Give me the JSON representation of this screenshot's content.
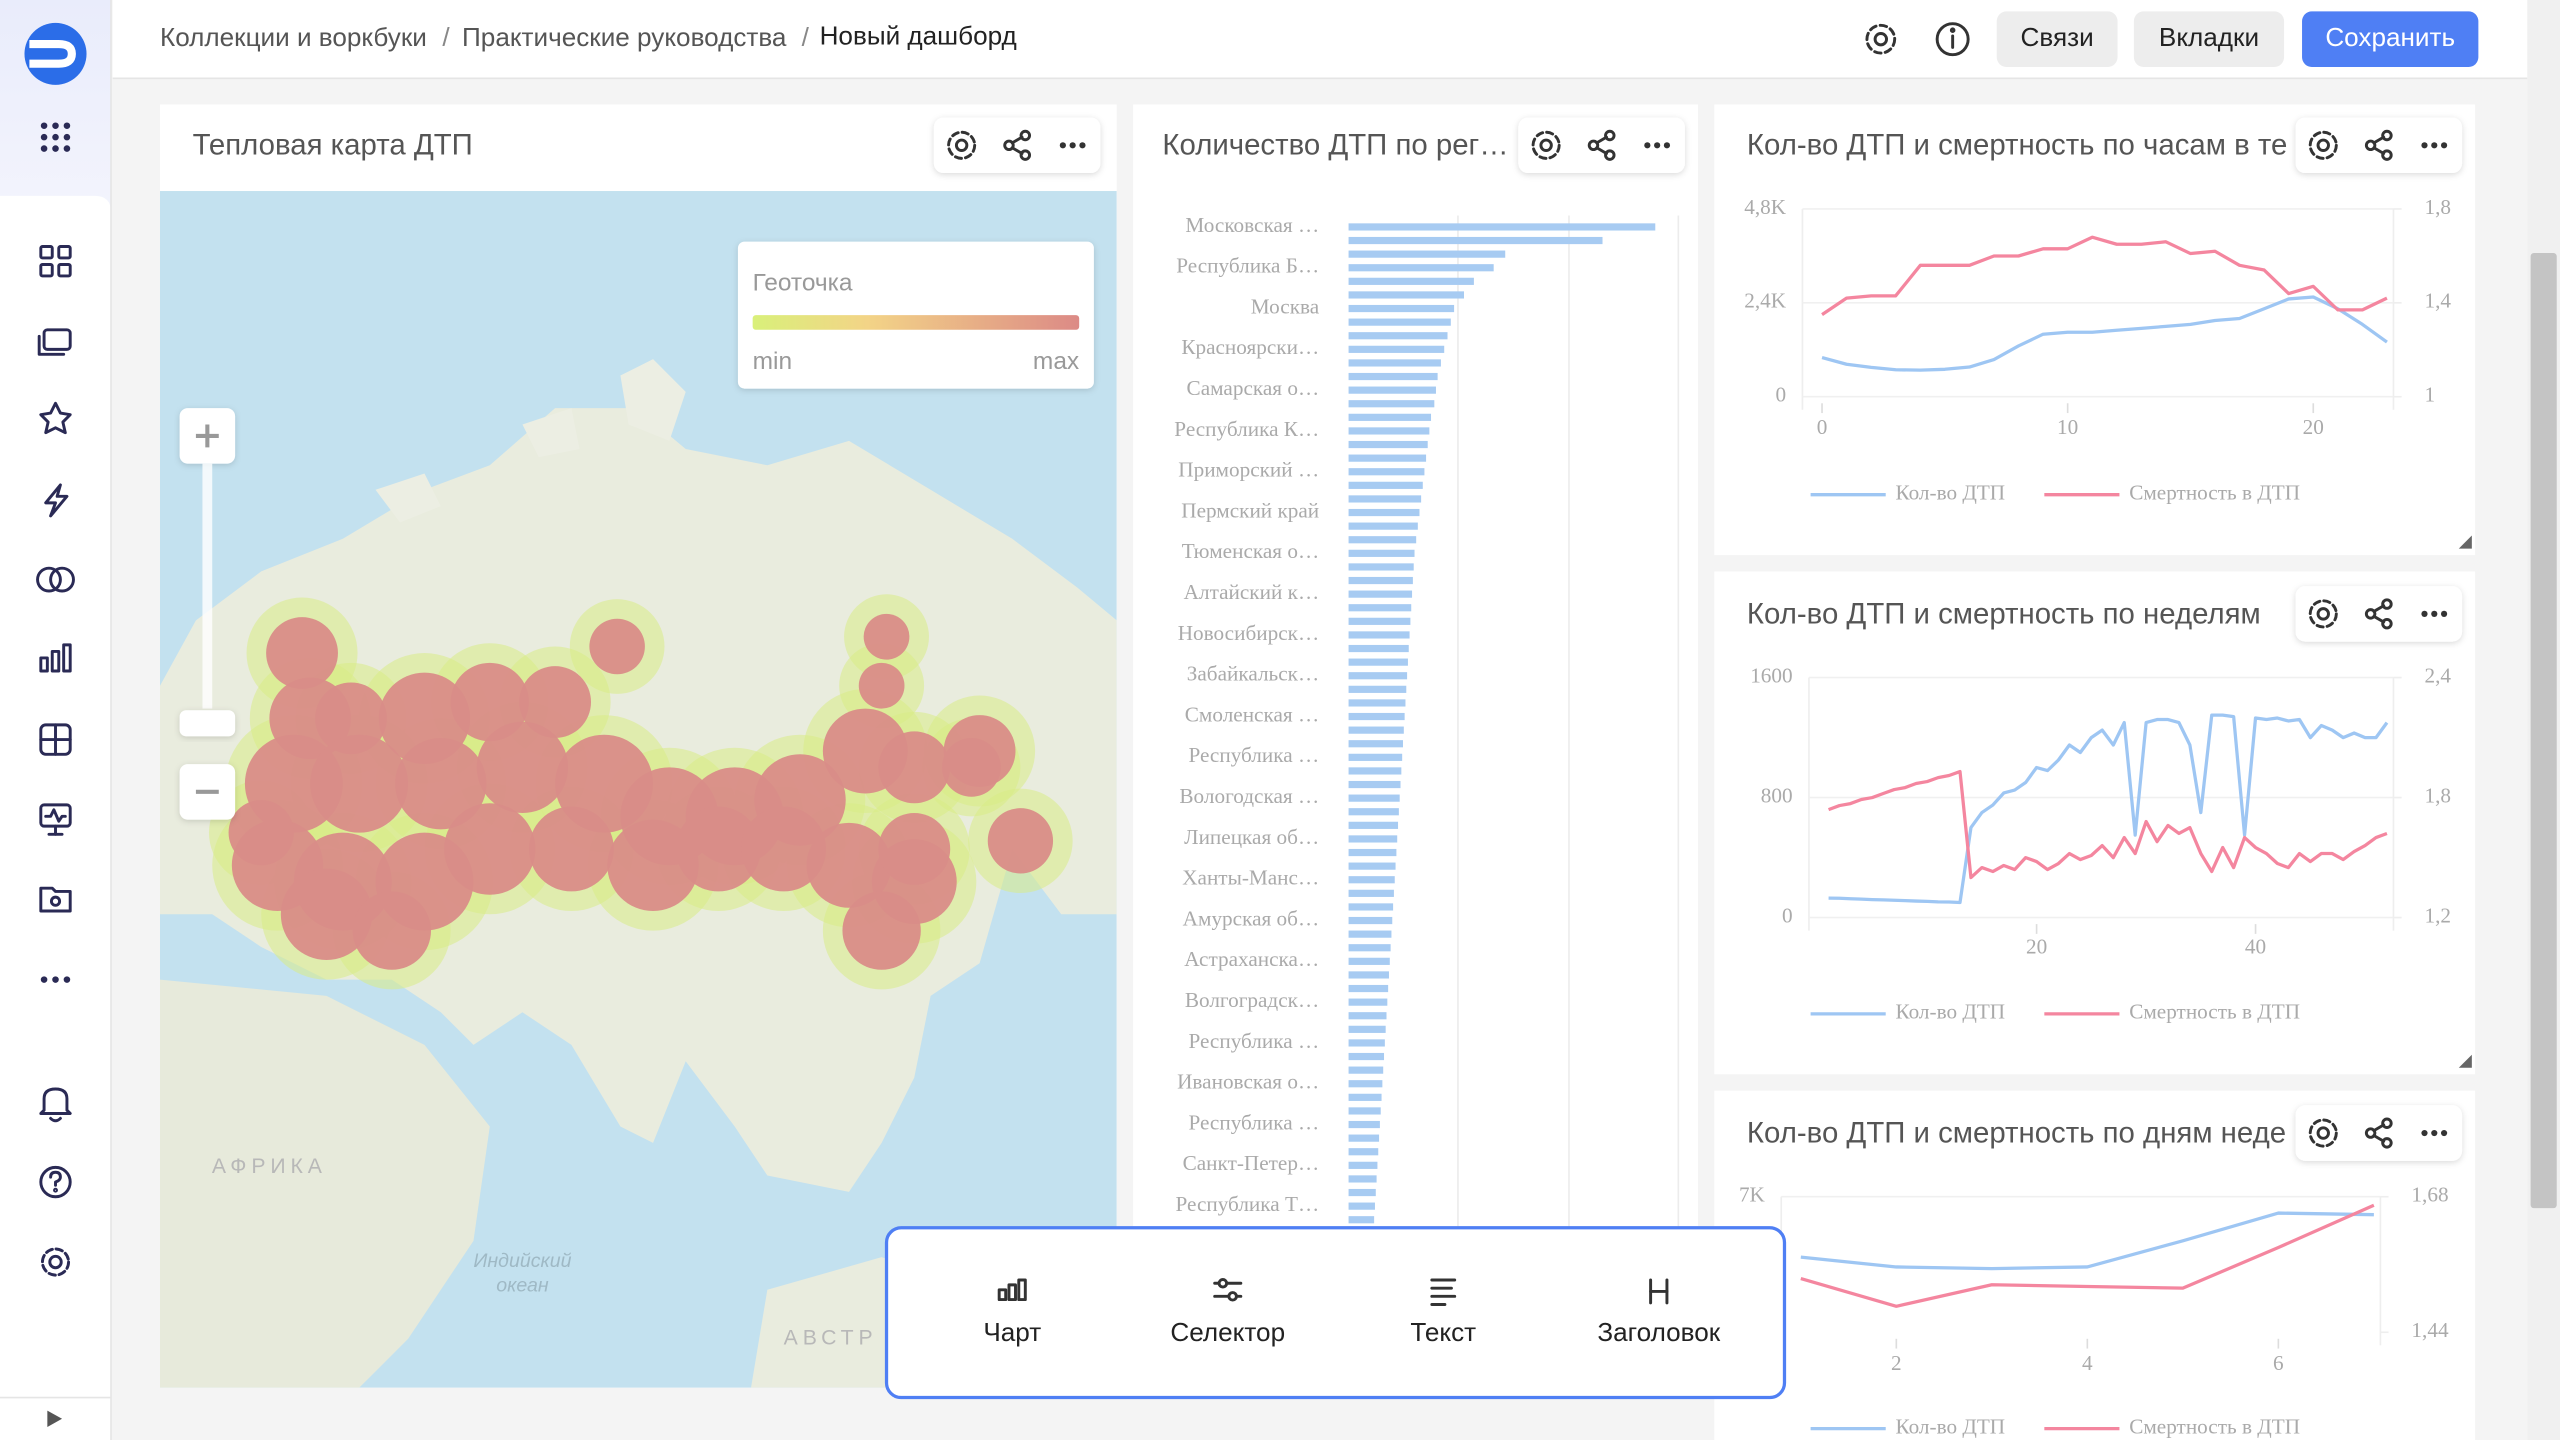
{
  "breadcrumbs": [
    "Коллекции и воркбуки",
    "Практические руководства",
    "Новый дашборд"
  ],
  "header_buttons": [
    "Связи",
    "Вкладки",
    "Сохранить"
  ],
  "widgets": [
    {
      "title": "Тепловая карта ДТП",
      "legend": {
        "title": "Геоточка",
        "min": "min",
        "max": "max"
      },
      "map_labels": [
        "АФРИКА",
        "Индийский",
        "океан",
        "АВСТР"
      ]
    },
    {
      "title": "Количество ДТП по рег…",
      "chart": {
        "type": "bar",
        "orientation": "horizontal",
        "color": "#a7cbf2",
        "xlim": [
          0,
          200
        ],
        "categories": [
          "Московская …",
          null,
          null,
          "Республика Б…",
          null,
          null,
          "Москва",
          null,
          null,
          "Красноярски…",
          null,
          null,
          "Самарская о…",
          null,
          null,
          "Республика К…",
          null,
          null,
          "Приморский …",
          null,
          null,
          "Пермский край",
          null,
          null,
          "Тюменская о…",
          null,
          null,
          "Алтайский к…",
          null,
          null,
          "Новосибирск…",
          null,
          null,
          "Забайкальск…",
          null,
          null,
          "Смоленская …",
          null,
          null,
          "Республика …",
          null,
          null,
          "Вологодская …",
          null,
          null,
          "Липецкая об…",
          null,
          null,
          "Ханты-Манс…",
          null,
          null,
          "Амурская об…",
          null,
          null,
          "Астраханска…",
          null,
          null,
          "Волгоградск…",
          null,
          null,
          "Республика …",
          null,
          null,
          "Ивановская о…",
          null,
          null,
          "Республика …",
          null,
          null,
          "Санкт-Петер…",
          null,
          null,
          "Республика Т…",
          null,
          null
        ],
        "values": [
          186,
          154,
          95,
          88,
          76,
          70,
          64,
          62,
          60,
          58,
          56,
          54,
          53,
          52,
          50,
          49,
          48,
          47,
          46,
          45,
          44,
          43,
          42,
          41,
          40,
          39.5,
          39,
          38.5,
          38,
          37.5,
          37,
          36.5,
          36,
          35.5,
          35,
          34.5,
          34,
          33.5,
          33,
          32.5,
          32,
          31.5,
          31,
          30.5,
          30,
          29.5,
          29,
          28.5,
          28,
          27.5,
          27,
          26.5,
          26,
          25.5,
          25,
          24.5,
          24,
          23.5,
          23,
          22.5,
          22,
          21.5,
          21,
          20.5,
          20,
          19.5,
          19,
          18.5,
          18,
          17.5,
          17,
          16.5,
          16,
          15.5,
          15
        ]
      }
    },
    {
      "title": "Кол-во ДТП и смертность по часам в те",
      "chart": {
        "type": "line",
        "x": [
          0,
          1,
          2,
          3,
          4,
          5,
          6,
          7,
          8,
          9,
          10,
          11,
          12,
          13,
          14,
          15,
          16,
          17,
          18,
          19,
          20,
          21,
          22,
          23
        ],
        "xlim": [
          0,
          23
        ],
        "xticks": [
          0,
          10,
          20
        ],
        "ylim": [
          0,
          4800
        ],
        "yticks": [
          0,
          {
            "value": 2400,
            "label": "2,4K"
          },
          {
            "value": 4800,
            "label": "4,8K"
          }
        ],
        "y2lim": [
          1,
          1.8
        ],
        "y2ticks": [
          1,
          {
            "value": 1.4,
            "label": "1,4"
          },
          {
            "value": 1.8,
            "label": "1,8"
          }
        ],
        "series": [
          {
            "name": "Кол-во ДТП",
            "color": "#9ec6f3",
            "values": [
              1000,
              830,
              750,
              690,
              680,
              700,
              760,
              950,
              1300,
              1600,
              1650,
              1650,
              1700,
              1750,
              1800,
              1850,
              1950,
              2000,
              2250,
              2500,
              2550,
              2250,
              1850,
              1400
            ]
          },
          {
            "name": "Смертность в ДТП",
            "color": "#f4869f",
            "axis": "y2",
            "values": [
              1.35,
              1.42,
              1.43,
              1.43,
              1.56,
              1.56,
              1.56,
              1.6,
              1.6,
              1.63,
              1.63,
              1.68,
              1.65,
              1.65,
              1.66,
              1.61,
              1.62,
              1.56,
              1.54,
              1.44,
              1.47,
              1.37,
              1.37,
              1.42
            ]
          }
        ]
      }
    },
    {
      "title": "Кол-во ДТП и смертность по неделям",
      "chart": {
        "type": "line",
        "x": [
          1,
          2,
          3,
          4,
          5,
          6,
          7,
          8,
          9,
          10,
          11,
          12,
          13,
          14,
          15,
          16,
          17,
          18,
          19,
          20,
          21,
          22,
          23,
          24,
          25,
          26,
          27,
          28,
          29,
          30,
          31,
          32,
          33,
          34,
          35,
          36,
          37,
          38,
          39,
          40,
          41,
          42,
          43,
          44,
          45,
          46,
          47,
          48,
          49,
          50,
          51,
          52
        ],
        "xlim": [
          1,
          52
        ],
        "xticks": [
          20,
          40
        ],
        "ylim": [
          0,
          1600
        ],
        "yticks": [
          0,
          800,
          1600
        ],
        "y2lim": [
          1.2,
          2.4
        ],
        "y2ticks": [
          {
            "value": 1.2,
            "label": "1,2"
          },
          {
            "value": 1.8,
            "label": "1,8"
          },
          {
            "value": 2.4,
            "label": "2,4"
          }
        ],
        "series": [
          {
            "name": "Кол-во ДТП",
            "color": "#9ec6f3",
            "values": [
              130,
              128,
              125,
              123,
              120,
              118,
              115,
              113,
              110,
              108,
              105,
              103,
              100,
              600,
              700,
              750,
              830,
              850,
              900,
              1000,
              980,
              1050,
              1150,
              1100,
              1200,
              1250,
              1150,
              1300,
              550,
              1300,
              1320,
              1320,
              1300,
              1150,
              700,
              1350,
              1350,
              1340,
              550,
              1330,
              1320,
              1330,
              1310,
              1320,
              1200,
              1280,
              1250,
              1200,
              1230,
              1200,
              1200,
              1300
            ]
          },
          {
            "name": "Смертность в ДТП",
            "color": "#f4869f",
            "axis": "y2",
            "values": [
              1.74,
              1.76,
              1.77,
              1.79,
              1.8,
              1.82,
              1.84,
              1.85,
              1.87,
              1.88,
              1.9,
              1.91,
              1.93,
              1.4,
              1.45,
              1.43,
              1.46,
              1.44,
              1.5,
              1.48,
              1.44,
              1.47,
              1.52,
              1.49,
              1.51,
              1.56,
              1.5,
              1.6,
              1.52,
              1.68,
              1.58,
              1.66,
              1.62,
              1.65,
              1.52,
              1.43,
              1.55,
              1.45,
              1.6,
              1.55,
              1.52,
              1.47,
              1.45,
              1.52,
              1.48,
              1.52,
              1.52,
              1.49,
              1.53,
              1.56,
              1.6,
              1.62
            ]
          }
        ]
      }
    },
    {
      "title": "Кол-во ДТП и смертность по дням неде",
      "chart": {
        "type": "line",
        "x": [
          1,
          2,
          3,
          4,
          5,
          6,
          7
        ],
        "xlim": [
          1,
          7
        ],
        "xticks": [
          2,
          4,
          6
        ],
        "ylim": [
          6000,
          7000
        ],
        "yticks": [
          {
            "value": 7000,
            "label": "7K"
          }
        ],
        "y2lim": [
          1.44,
          1.68
        ],
        "y2ticks": [
          {
            "value": 1.44,
            "label": "1,44"
          },
          {
            "value": 1.68,
            "label": "1,68"
          }
        ],
        "series": [
          {
            "name": "Кол-во ДТП",
            "color": "#9ec6f3",
            "values": [
              6554,
              6482,
              6470,
              6482,
              6675,
              6880,
              6867
            ]
          },
          {
            "name": "Смертность в ДТП",
            "color": "#f4869f",
            "axis": "y2",
            "values": [
              1.535,
              1.486,
              1.524,
              1.521,
              1.518,
              1.59,
              1.665
            ]
          }
        ]
      }
    }
  ],
  "toolbar": [
    "Чарт",
    "Селектор",
    "Текст",
    "Заголовок"
  ]
}
